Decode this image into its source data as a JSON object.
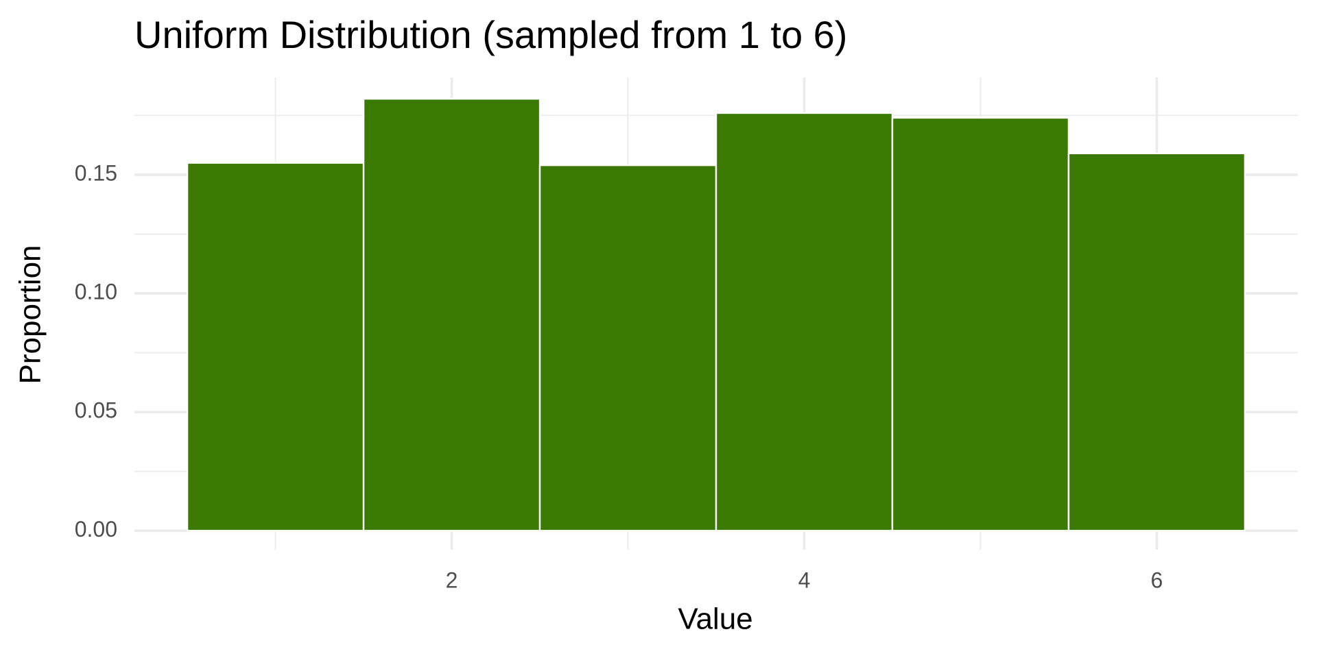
{
  "chart_data": {
    "type": "histogram",
    "title": "Uniform Distribution (sampled from 1 to 6)",
    "xlabel": "Value",
    "ylabel": "Proportion",
    "bins": [
      0.5,
      1.5,
      2.5,
      3.5,
      4.5,
      5.5,
      6.5
    ],
    "values": [
      0.155,
      0.182,
      0.154,
      0.176,
      0.174,
      0.159
    ],
    "color": "#3a7a03",
    "xlim": [
      0.2,
      6.8
    ],
    "xticks": [
      2,
      4,
      6
    ],
    "xminor": [
      1,
      3,
      5
    ],
    "ylim": [
      -0.008,
      0.191
    ],
    "yticks": [
      {
        "value": 0,
        "label": "0.00"
      },
      {
        "value": 0.05,
        "label": "0.05"
      },
      {
        "value": 0.1,
        "label": "0.10"
      },
      {
        "value": 0.15,
        "label": "0.15"
      }
    ],
    "yminor": [
      0.025,
      0.075,
      0.125,
      0.175
    ],
    "grid": true
  }
}
